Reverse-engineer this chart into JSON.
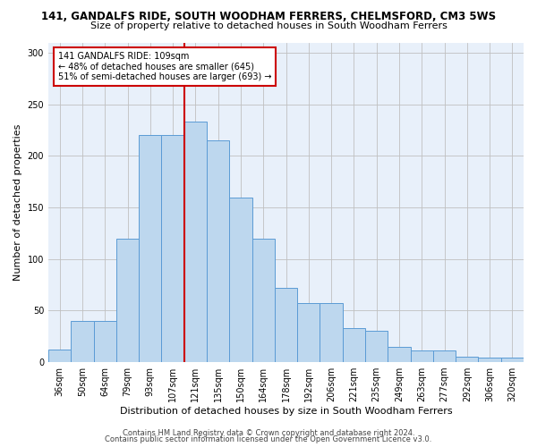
{
  "title": "141, GANDALFS RIDE, SOUTH WOODHAM FERRERS, CHELMSFORD, CM3 5WS",
  "subtitle": "Size of property relative to detached houses in South Woodham Ferrers",
  "xlabel": "Distribution of detached houses by size in South Woodham Ferrers",
  "ylabel": "Number of detached properties",
  "categories": [
    "36sqm",
    "50sqm",
    "64sqm",
    "79sqm",
    "93sqm",
    "107sqm",
    "121sqm",
    "135sqm",
    "150sqm",
    "164sqm",
    "178sqm",
    "192sqm",
    "206sqm",
    "221sqm",
    "235sqm",
    "249sqm",
    "263sqm",
    "277sqm",
    "292sqm",
    "306sqm",
    "320sqm"
  ],
  "values": [
    12,
    40,
    40,
    120,
    220,
    220,
    233,
    215,
    160,
    120,
    72,
    57,
    57,
    33,
    30,
    15,
    11,
    11,
    5,
    4,
    4
  ],
  "bar_color": "#BDD7EE",
  "bar_edge_color": "#5B9BD5",
  "vline_x": 5.5,
  "vline_color": "#CC0000",
  "annotation_text": "141 GANDALFS RIDE: 109sqm\n← 48% of detached houses are smaller (645)\n51% of semi-detached houses are larger (693) →",
  "annotation_box_color": "#ffffff",
  "annotation_box_edge": "#CC0000",
  "ylim": [
    0,
    310
  ],
  "yticks": [
    0,
    50,
    100,
    150,
    200,
    250,
    300
  ],
  "footer1": "Contains HM Land Registry data © Crown copyright and database right 2024.",
  "footer2": "Contains public sector information licensed under the Open Government Licence v3.0.",
  "bg_color": "#ffffff",
  "plot_bg_color": "#E8F0FA",
  "grid_color": "#c0c0c0",
  "title_fontsize": 8.5,
  "subtitle_fontsize": 8,
  "xlabel_fontsize": 8,
  "ylabel_fontsize": 8,
  "tick_fontsize": 7,
  "annotation_fontsize": 7,
  "footer_fontsize": 6
}
